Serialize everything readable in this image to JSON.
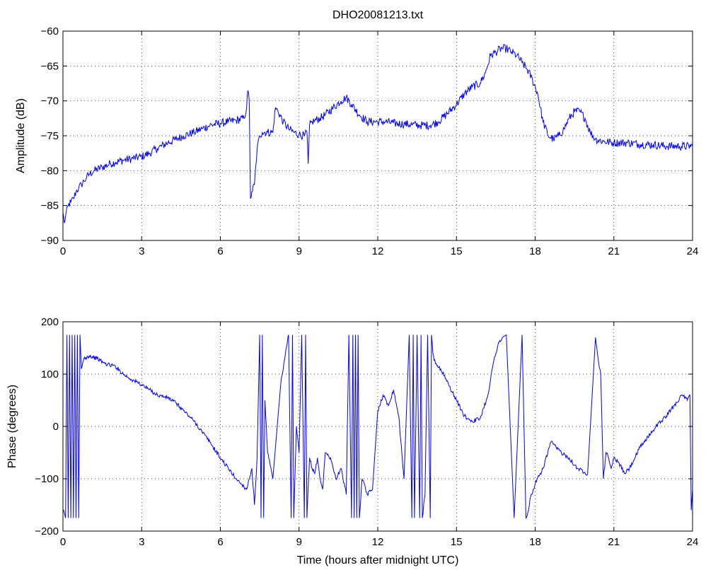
{
  "chart_data": [
    {
      "type": "line",
      "title": "DHO20081213.txt",
      "xlabel": "",
      "ylabel": "Amplitude (dB)",
      "xlim": [
        0,
        24
      ],
      "ylim": [
        -90,
        -60
      ],
      "xticks": [
        0,
        3,
        6,
        9,
        12,
        15,
        18,
        21,
        24
      ],
      "xtick_labels": [
        "0",
        "3",
        "6",
        "9",
        "12",
        "15",
        "18",
        "21",
        "24"
      ],
      "yticks": [
        -90,
        -85,
        -80,
        -75,
        -70,
        -65,
        -60
      ],
      "ytick_labels": [
        "−90",
        "−85",
        "−80",
        "−75",
        "−70",
        "−65",
        "−60"
      ],
      "grid": true,
      "series": [
        {
          "color": "#0000ff",
          "x": [
            0,
            0.05,
            0.1,
            0.2,
            0.3,
            0.4,
            0.5,
            0.6,
            0.7,
            0.8,
            0.9,
            1.0,
            1.2,
            1.5,
            1.8,
            2.0,
            2.3,
            2.6,
            3.0,
            3.3,
            3.6,
            4.0,
            4.3,
            4.6,
            5.0,
            5.3,
            5.6,
            6.0,
            6.3,
            6.6,
            6.9,
            7.0,
            7.05,
            7.1,
            7.15,
            7.2,
            7.3,
            7.4,
            7.5,
            7.6,
            7.8,
            8.0,
            8.1,
            8.2,
            8.4,
            8.6,
            8.8,
            9.0,
            9.2,
            9.3,
            9.35,
            9.4,
            9.5,
            9.6,
            9.8,
            10.0,
            10.3,
            10.6,
            10.8,
            11.0,
            11.3,
            11.6,
            12.0,
            12.3,
            12.6,
            13.0,
            13.3,
            13.6,
            14.0,
            14.3,
            14.6,
            15.0,
            15.3,
            15.6,
            15.9,
            16.1,
            16.3,
            16.5,
            16.7,
            16.9,
            17.1,
            17.3,
            17.5,
            17.7,
            17.9,
            18.1,
            18.3,
            18.5,
            18.7,
            18.9,
            19.1,
            19.3,
            19.5,
            19.7,
            19.9,
            20.1,
            20.3,
            20.6,
            21.0,
            21.5,
            22.0,
            22.5,
            23.0,
            23.5,
            24.0
          ],
          "y": [
            -86,
            -87.5,
            -86.5,
            -85,
            -84.5,
            -84,
            -83,
            -82.5,
            -82,
            -81.5,
            -81,
            -80.5,
            -80,
            -79.5,
            -79,
            -78.8,
            -78.5,
            -78.3,
            -78,
            -77.5,
            -76.8,
            -76,
            -75.5,
            -75,
            -74.5,
            -74,
            -73.5,
            -73.2,
            -73,
            -72.8,
            -72.5,
            -71,
            -68.5,
            -70,
            -84,
            -83,
            -82,
            -77,
            -75,
            -74.5,
            -74.5,
            -74.5,
            -71,
            -71.5,
            -73,
            -74,
            -74.5,
            -74.8,
            -75,
            -74.5,
            -79,
            -73.5,
            -73,
            -72.8,
            -72.5,
            -72,
            -71,
            -70,
            -69.5,
            -70.5,
            -72,
            -73,
            -73,
            -73,
            -73.2,
            -73.3,
            -73.4,
            -73.5,
            -73.5,
            -73,
            -72,
            -70.5,
            -69,
            -68,
            -67.5,
            -66,
            -63.5,
            -63,
            -62.5,
            -62.5,
            -63,
            -63.5,
            -64.5,
            -65.5,
            -67,
            -69,
            -73,
            -75,
            -75.5,
            -75,
            -74,
            -72.5,
            -71.5,
            -71.5,
            -72.5,
            -74.5,
            -75.5,
            -75.8,
            -76,
            -76,
            -76.2,
            -76.3,
            -76.5,
            -76.5,
            -76.5
          ]
        }
      ]
    },
    {
      "type": "line",
      "title": "",
      "xlabel": "Time (hours after midnight UTC)",
      "ylabel": "Phase (degrees)",
      "xlim": [
        0,
        24
      ],
      "ylim": [
        -200,
        200
      ],
      "xticks": [
        0,
        3,
        6,
        9,
        12,
        15,
        18,
        21,
        24
      ],
      "xtick_labels": [
        "0",
        "3",
        "6",
        "9",
        "12",
        "15",
        "18",
        "21",
        "24"
      ],
      "yticks": [
        -200,
        -100,
        0,
        100,
        200
      ],
      "ytick_labels": [
        "−200",
        "−100",
        "0",
        "100",
        "200"
      ],
      "grid": true,
      "series": [
        {
          "color": "#0000ff",
          "x": [
            0,
            0.1,
            0.15,
            0.2,
            0.25,
            0.3,
            0.35,
            0.4,
            0.45,
            0.5,
            0.55,
            0.6,
            0.65,
            0.7,
            0.8,
            1.0,
            1.3,
            1.6,
            2.0,
            2.3,
            2.6,
            3.0,
            3.3,
            3.6,
            4.0,
            4.3,
            4.6,
            5.0,
            5.3,
            5.6,
            6.0,
            6.3,
            6.6,
            6.9,
            7.0,
            7.1,
            7.2,
            7.3,
            7.4,
            7.5,
            7.55,
            7.6,
            7.65,
            7.7,
            7.8,
            8.0,
            8.3,
            8.6,
            8.7,
            8.75,
            8.8,
            8.9,
            9.0,
            9.1,
            9.2,
            9.25,
            9.3,
            9.4,
            9.5,
            9.6,
            9.7,
            9.8,
            9.9,
            10.0,
            10.2,
            10.4,
            10.6,
            10.8,
            10.9,
            11.0,
            11.05,
            11.1,
            11.15,
            11.2,
            11.25,
            11.3,
            11.4,
            11.6,
            11.8,
            12.0,
            12.2,
            12.4,
            12.6,
            12.8,
            13.0,
            13.2,
            13.3,
            13.35,
            13.4,
            13.5,
            13.6,
            13.65,
            13.7,
            13.8,
            13.9,
            14.0,
            14.05,
            14.1,
            14.2,
            14.4,
            14.7,
            15.0,
            15.3,
            15.6,
            15.9,
            16.2,
            16.4,
            16.6,
            16.9,
            17.2,
            17.5,
            17.65,
            17.7,
            17.75,
            17.8,
            18.0,
            18.3,
            18.6,
            18.8,
            19.0,
            19.3,
            19.6,
            20.0,
            20.3,
            20.4,
            20.5,
            20.6,
            20.7,
            20.8,
            20.9,
            21.0,
            21.2,
            21.4,
            21.6,
            21.8,
            22.0,
            22.3,
            22.6,
            23.0,
            23.3,
            23.6,
            23.8,
            23.9,
            23.95,
            24.0
          ],
          "y": [
            -160,
            -175,
            175,
            -175,
            175,
            -175,
            175,
            -175,
            175,
            -175,
            175,
            -175,
            175,
            110,
            130,
            135,
            130,
            120,
            115,
            100,
            90,
            80,
            70,
            60,
            55,
            45,
            30,
            10,
            -10,
            -30,
            -60,
            -80,
            -100,
            -115,
            -120,
            -100,
            -80,
            -150,
            -60,
            175,
            -175,
            175,
            -175,
            50,
            -50,
            -100,
            80,
            175,
            -175,
            175,
            -175,
            0,
            -50,
            175,
            -175,
            175,
            -175,
            -60,
            -80,
            -90,
            -60,
            -100,
            -120,
            -50,
            -60,
            -100,
            -80,
            -130,
            175,
            -175,
            175,
            -175,
            175,
            -175,
            175,
            -175,
            -100,
            -130,
            -120,
            30,
            60,
            40,
            70,
            20,
            -100,
            175,
            -175,
            175,
            -175,
            175,
            -175,
            175,
            -175,
            -130,
            175,
            -175,
            175,
            140,
            120,
            110,
            80,
            50,
            20,
            10,
            15,
            60,
            120,
            160,
            175,
            -175,
            175,
            -175,
            -170,
            -160,
            -140,
            -110,
            -80,
            -30,
            -40,
            -50,
            -60,
            -80,
            -90,
            170,
            130,
            100,
            -100,
            -50,
            -60,
            -80,
            -60,
            -70,
            -90,
            -80,
            -60,
            -40,
            -20,
            0,
            20,
            40,
            60,
            50,
            60,
            -160,
            -120
          ]
        }
      ]
    }
  ]
}
